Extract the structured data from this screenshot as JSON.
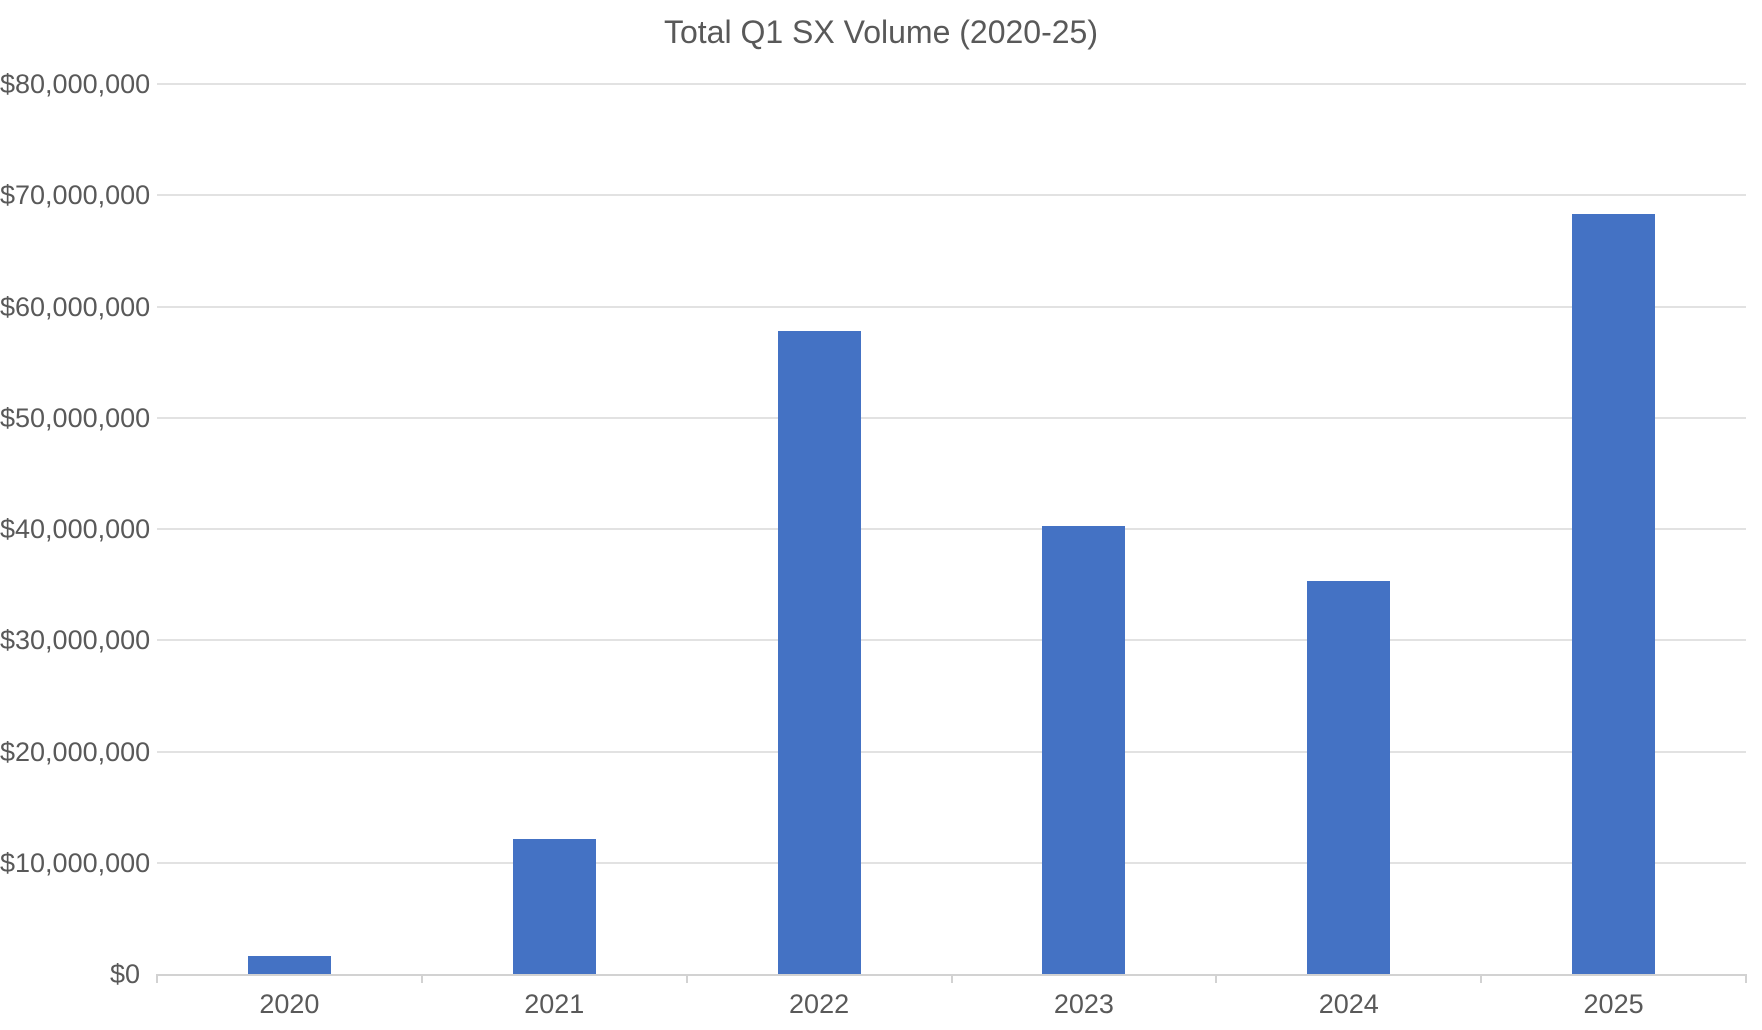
{
  "chart_title": "Total Q1 SX Volume (2020-25)",
  "colors": {
    "bar": "#4472C4",
    "gridline": "#E2E2E2",
    "axis_line": "#D2D2D2",
    "text": "#595959",
    "background": "#FFFFFF"
  },
  "chart_data": {
    "type": "bar",
    "title": "Total Q1 SX Volume (2020-25)",
    "categories": [
      "2020",
      "2021",
      "2022",
      "2023",
      "2024",
      "2025"
    ],
    "values": [
      1600000,
      12100000,
      57800000,
      40300000,
      35350000,
      68300000
    ],
    "xlabel": "",
    "ylabel": "",
    "ylim": [
      0,
      80000000
    ],
    "y_tick_interval": 10000000,
    "y_tick_labels": [
      "$0",
      "$10,000,000",
      "$20,000,000",
      "$30,000,000",
      "$40,000,000",
      "$50,000,000",
      "$60,000,000",
      "$70,000,000",
      "$80,000,000"
    ],
    "grid": true,
    "legend": false
  }
}
